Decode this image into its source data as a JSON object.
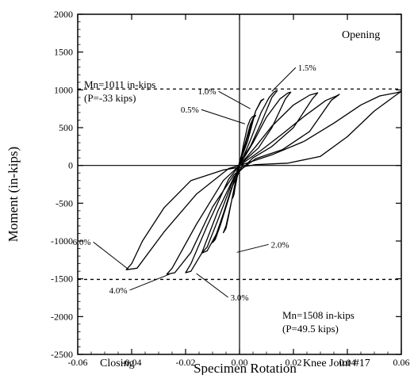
{
  "chart_data": {
    "type": "line",
    "title": "",
    "xlabel": "Specimen Rotation",
    "ylabel": "Moment (in-kips)",
    "xlim": [
      -0.06,
      0.06
    ],
    "ylim": [
      -2500,
      2000
    ],
    "x_ticks": [
      -0.06,
      -0.04,
      -0.02,
      0.0,
      0.02,
      0.04,
      0.06
    ],
    "x_tick_labels": [
      "-0.06",
      "-0.04",
      "-0.02",
      "0.00",
      "0.02",
      "0.04",
      "0.06"
    ],
    "y_ticks": [
      2000,
      1500,
      1000,
      500,
      0,
      -500,
      -1000,
      -1500,
      -2000,
      -2500
    ],
    "y_tick_labels": [
      "2000",
      "1500",
      "1000",
      "500",
      "0",
      "-500",
      "-1000",
      "-1500",
      "-2000",
      "-2500"
    ],
    "grid": false,
    "reference_lines": [
      {
        "y": 1011,
        "label_line1": "Mn=1011 in-kips",
        "label_line2": "(P=-33 kips)"
      },
      {
        "y": -1508,
        "label_line1": "Mn=1508 in-kips",
        "label_line2": "(P=49.5 kips)"
      }
    ],
    "corner_labels": {
      "top_right": "Opening",
      "bottom_left": "Closing",
      "bottom_right": "Knee Joint #17"
    },
    "drift_labels": [
      {
        "text": "1.5%",
        "at": [
          0.012,
          980
        ]
      },
      {
        "text": "1.0%",
        "at": [
          0.004,
          750
        ]
      },
      {
        "text": "0.5%",
        "at": [
          0.002,
          550
        ]
      },
      {
        "text": "2.0%",
        "at": [
          -0.001,
          -1150
        ]
      },
      {
        "text": "3.0%",
        "at": [
          -0.016,
          -1430
        ]
      },
      {
        "text": "4.0%",
        "at": [
          -0.026,
          -1440
        ]
      },
      {
        "text": "6.0%",
        "at": [
          -0.041,
          -1380
        ]
      }
    ],
    "series": [
      {
        "x": [
          0.0,
          0.0015,
          0.003,
          0.004,
          0.005,
          0.006,
          0.005,
          0.004,
          0.002,
          0.0,
          -0.0015,
          -0.002,
          -0.0025,
          -0.002,
          -0.001,
          0.0
        ],
        "y": [
          0,
          280,
          520,
          610,
          650,
          660,
          620,
          540,
          280,
          50,
          -250,
          -380,
          -430,
          -360,
          -180,
          0
        ]
      },
      {
        "x": [
          0.0,
          0.003,
          0.006,
          0.008,
          0.009,
          0.008,
          0.006,
          0.003,
          0.0,
          -0.002,
          -0.004,
          -0.005,
          -0.006,
          -0.005,
          -0.003,
          0.0
        ],
        "y": [
          0,
          380,
          720,
          850,
          880,
          860,
          720,
          320,
          30,
          -300,
          -660,
          -830,
          -890,
          -800,
          -480,
          0
        ]
      },
      {
        "x": [
          0.0,
          0.004,
          0.008,
          0.011,
          0.013,
          0.014,
          0.012,
          0.008,
          0.004,
          0.0,
          -0.003,
          -0.007,
          -0.009,
          -0.01,
          -0.009,
          -0.006,
          -0.002,
          0.0
        ],
        "y": [
          0,
          330,
          700,
          900,
          980,
          990,
          900,
          560,
          250,
          40,
          -320,
          -780,
          -980,
          -1020,
          -950,
          -640,
          -200,
          0
        ]
      },
      {
        "x": [
          0.0,
          0.005,
          0.01,
          0.015,
          0.018,
          0.019,
          0.017,
          0.012,
          0.007,
          0.002,
          -0.003,
          -0.008,
          -0.012,
          -0.014,
          -0.012,
          -0.008,
          -0.003,
          0.0
        ],
        "y": [
          0,
          300,
          640,
          880,
          960,
          970,
          880,
          500,
          230,
          70,
          -300,
          -870,
          -1130,
          -1160,
          -1080,
          -720,
          -250,
          0
        ]
      },
      {
        "x": [
          0.0,
          0.006,
          0.012,
          0.02,
          0.026,
          0.029,
          0.027,
          0.02,
          0.012,
          0.005,
          -0.002,
          -0.008,
          -0.014,
          -0.018,
          -0.02,
          -0.018,
          -0.012,
          -0.004,
          0.0
        ],
        "y": [
          0,
          250,
          520,
          800,
          930,
          960,
          880,
          500,
          250,
          100,
          -150,
          -600,
          -1160,
          -1400,
          -1420,
          -1300,
          -800,
          -180,
          0
        ]
      },
      {
        "x": [
          0.0,
          0.008,
          0.016,
          0.024,
          0.032,
          0.036,
          0.037,
          0.034,
          0.026,
          0.016,
          0.006,
          -0.002,
          -0.01,
          -0.018,
          -0.024,
          -0.027,
          -0.025,
          -0.016,
          -0.006,
          0.0
        ],
        "y": [
          0,
          200,
          420,
          650,
          860,
          920,
          940,
          860,
          450,
          210,
          90,
          -120,
          -550,
          -1150,
          -1420,
          -1440,
          -1360,
          -780,
          -200,
          0
        ]
      },
      {
        "x": [
          0.0,
          0.012,
          0.024,
          0.035,
          0.045,
          0.052,
          0.058,
          0.06,
          0.058,
          0.05,
          0.04,
          0.03,
          0.018,
          0.006,
          -0.006,
          -0.018,
          -0.028,
          -0.036,
          -0.04,
          -0.042,
          -0.038,
          -0.028,
          -0.016,
          -0.004,
          0.0
        ],
        "y": [
          0,
          140,
          320,
          560,
          800,
          920,
          960,
          980,
          930,
          720,
          380,
          120,
          30,
          10,
          -60,
          -200,
          -560,
          -1000,
          -1300,
          -1380,
          -1360,
          -880,
          -380,
          -40,
          0
        ]
      }
    ]
  }
}
